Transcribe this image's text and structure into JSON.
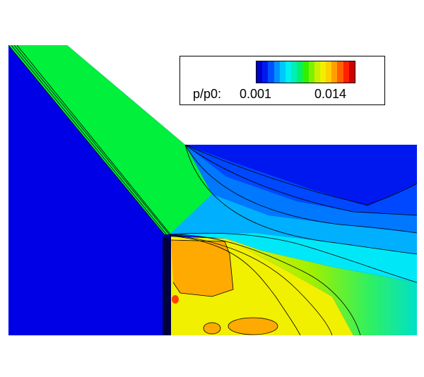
{
  "legend": {
    "variable_label": "p/p0:",
    "min_label": "0.001",
    "max_label": "0.014",
    "colors": [
      "#0000c8",
      "#0018f0",
      "#0050ff",
      "#0090ff",
      "#00c8ff",
      "#00f0f0",
      "#00f0b4",
      "#00f070",
      "#30f000",
      "#80f000",
      "#c8f000",
      "#f0f000",
      "#ffd000",
      "#ffa000",
      "#ff6000",
      "#ff2000",
      "#d00000"
    ]
  },
  "field_colors": {
    "background": "#0000e6",
    "jet": "#00f03c",
    "core_orange": "#ffaa00",
    "core_yellow": "#f0f000",
    "contour_line": "#000000"
  }
}
